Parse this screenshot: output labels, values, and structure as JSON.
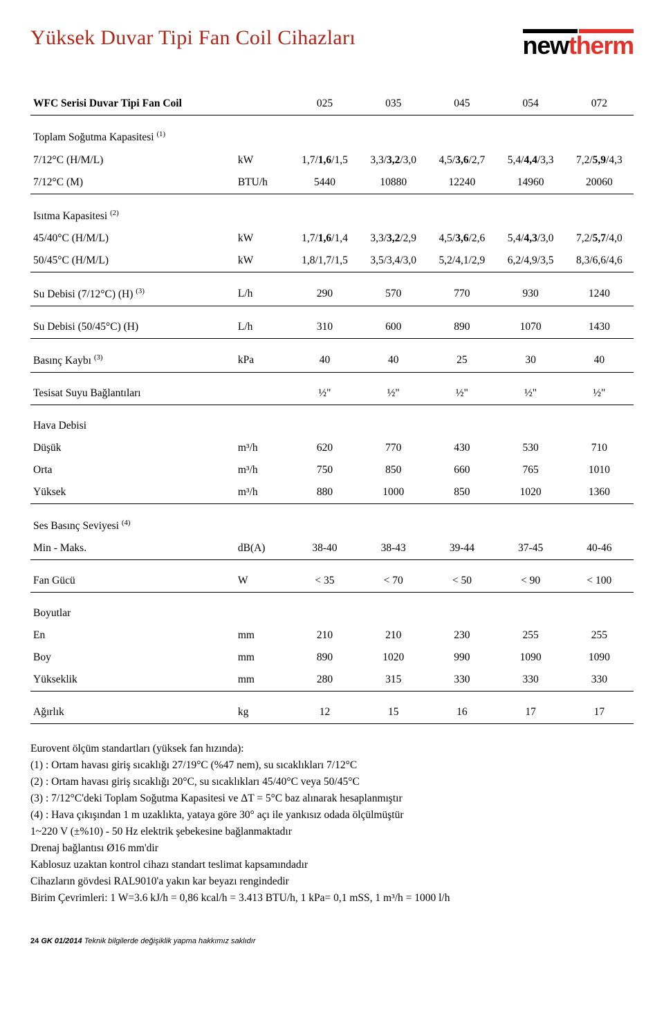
{
  "header": {
    "title": "Yüksek Duvar Tipi Fan Coil Cihazları",
    "logo_new": "new",
    "logo_therm": "therm"
  },
  "table": {
    "heading_label": "WFC Serisi Duvar Tipi Fan Coil",
    "models": [
      "025",
      "035",
      "045",
      "054",
      "072"
    ],
    "rows": [
      {
        "label": "Toplam Soğutma Kapasitesi ",
        "sup": "(1)",
        "unit": "",
        "hr": true,
        "section": true
      },
      {
        "label": "7/12°C (H/M/L)",
        "unit": "kW",
        "values_bold": [
          [
            "1,7/",
            "1,6",
            "/1,5"
          ],
          [
            "3,3/",
            "3,2",
            "/3,0"
          ],
          [
            "4,5/",
            "3,6",
            "/2,7"
          ],
          [
            "5,4/",
            "4,4",
            "/3,3"
          ],
          [
            "7,2/",
            "5,9",
            "/4,3"
          ]
        ]
      },
      {
        "label": "7/12°C (M)",
        "unit": "BTU/h",
        "values": [
          "5440",
          "10880",
          "12240",
          "14960",
          "20060"
        ],
        "hr_after": true
      },
      {
        "label": "Isıtma Kapasitesi ",
        "sup": "(2)",
        "unit": "",
        "section": true
      },
      {
        "label": "45/40°C (H/M/L)",
        "unit": "kW",
        "values_bold": [
          [
            "1,7/",
            "1,6",
            "/1,4"
          ],
          [
            "3,3/",
            "3,2",
            "/2,9"
          ],
          [
            "4,5/",
            "3,6",
            "/2,6"
          ],
          [
            "5,4/",
            "4,3",
            "/3,0"
          ],
          [
            "7,2/",
            "5,7",
            "/4,0"
          ]
        ]
      },
      {
        "label": "50/45°C (H/M/L)",
        "unit": "kW",
        "values": [
          "1,8/1,7/1,5",
          "3,5/3,4/3,0",
          "5,2/4,1/2,9",
          "6,2/4,9/3,5",
          "8,3/6,6/4,6"
        ],
        "hr_after": true
      },
      {
        "label": "Su Debisi (7/12°C) (H) ",
        "sup": "(3)",
        "unit": "L/h",
        "values": [
          "290",
          "570",
          "770",
          "930",
          "1240"
        ],
        "hr_after": true
      },
      {
        "label": "Su Debisi (50/45°C) (H)",
        "unit": "L/h",
        "values": [
          "310",
          "600",
          "890",
          "1070",
          "1430"
        ],
        "hr_after": true
      },
      {
        "label": "Basınç Kaybı ",
        "sup": "(3)",
        "unit": "kPa",
        "values": [
          "40",
          "40",
          "25",
          "30",
          "40"
        ],
        "hr_after": true
      },
      {
        "label": "Tesisat Suyu Bağlantıları",
        "unit": "",
        "values": [
          "½\"",
          "½\"",
          "½\"",
          "½\"",
          "½\""
        ],
        "hr_after": true
      },
      {
        "label": "Hava Debisi",
        "unit": "",
        "section": true
      },
      {
        "label": "Düşük",
        "unit": "m³/h",
        "values": [
          "620",
          "770",
          "430",
          "530",
          "710"
        ]
      },
      {
        "label": "Orta",
        "unit": "m³/h",
        "values": [
          "750",
          "850",
          "660",
          "765",
          "1010"
        ]
      },
      {
        "label": "Yüksek",
        "unit": "m³/h",
        "values": [
          "880",
          "1000",
          "850",
          "1020",
          "1360"
        ],
        "hr_after": true
      },
      {
        "label": "Ses Basınç Seviyesi ",
        "sup": "(4)",
        "unit": "",
        "section": true
      },
      {
        "label": "Min - Maks.",
        "unit": "dB(A)",
        "values": [
          "38-40",
          "38-43",
          "39-44",
          "37-45",
          "40-46"
        ],
        "hr_after": true
      },
      {
        "label": "Fan Gücü",
        "unit": "W",
        "values": [
          "< 35",
          "< 70",
          "< 50",
          "< 90",
          "< 100"
        ],
        "hr_after": true
      },
      {
        "label": "Boyutlar",
        "unit": "",
        "section": true
      },
      {
        "label": "En",
        "unit": "mm",
        "values": [
          "210",
          "210",
          "230",
          "255",
          "255"
        ]
      },
      {
        "label": "Boy",
        "unit": "mm",
        "values": [
          "890",
          "1020",
          "990",
          "1090",
          "1090"
        ]
      },
      {
        "label": "Yükseklik",
        "unit": "mm",
        "values": [
          "280",
          "315",
          "330",
          "330",
          "330"
        ],
        "hr_after": true
      },
      {
        "label": "Ağırlık",
        "unit": "kg",
        "values": [
          "12",
          "15",
          "16",
          "17",
          "17"
        ],
        "hr_after": true
      }
    ]
  },
  "notes": [
    "Eurovent ölçüm standartları (yüksek fan hızında):",
    "(1) : Ortam havası giriş sıcaklığı 27/19°C (%47 nem), su sıcaklıkları 7/12°C",
    "(2) : Ortam havası giriş sıcaklığı 20°C, su sıcaklıkları 45/40°C veya 50/45°C",
    "(3) : 7/12°C'deki Toplam Soğutma Kapasitesi ve ΔT = 5°C baz alınarak hesaplanmıştır",
    "(4) : Hava çıkışından 1 m uzaklıkta, yataya göre 30° açı ile yankısız odada ölçülmüştür",
    "1~220 V (±%10) - 50 Hz elektrik şebekesine bağlanmaktadır",
    "Drenaj bağlantısı Ø16 mm'dir",
    "Kablosuz uzaktan kontrol cihazı standart teslimat kapsamındadır",
    "Cihazların gövdesi RAL9010'a yakın kar beyazı rengindedir",
    "Birim Çevrimleri: 1 W=3.6 kJ/h = 0,86 kcal/h = 3.413 BTU/h, 1 kPa= 0,1 mSS, 1 m³/h = 1000 l/h"
  ],
  "footer": {
    "page": "24",
    "code": "GK 01/2014",
    "disclaimer": "Teknik bilgilerde değişiklik yapma hakkımız saklıdır"
  },
  "style": {
    "title_color": "#b02418",
    "accent_red": "#e4322b",
    "text_color": "#000000",
    "background": "#ffffff",
    "font_body_pt": 15.5,
    "font_title_pt": 30,
    "border_color": "#000000",
    "table_col_widths_pct": [
      30,
      10,
      12,
      12,
      12,
      12,
      12
    ]
  }
}
